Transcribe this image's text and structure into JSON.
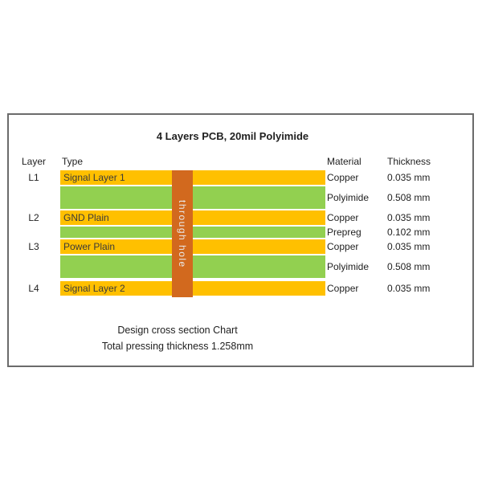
{
  "title": "4 Layers PCB, 20mil Polyimide",
  "columns": {
    "layer": "Layer",
    "type": "Type",
    "material": "Material",
    "thickness": "Thickness"
  },
  "stack": {
    "through_hole_label": "through hole",
    "layers": [
      {
        "layer": "L1",
        "type": "Signal Layer 1",
        "material": "Copper",
        "thickness": "0.035 mm",
        "kind": "copper"
      },
      {
        "layer": "",
        "type": "",
        "material": "Polyimide",
        "thickness": "0.508 mm",
        "kind": "dielectric-core"
      },
      {
        "layer": "L2",
        "type": "GND Plain",
        "material": "Copper",
        "thickness": "0.035 mm",
        "kind": "copper"
      },
      {
        "layer": "",
        "type": "",
        "material": "Prepreg",
        "thickness": "0.102 mm",
        "kind": "dielectric-prepreg"
      },
      {
        "layer": "L3",
        "type": "Power Plain",
        "material": "Copper",
        "thickness": "0.035 mm",
        "kind": "copper"
      },
      {
        "layer": "",
        "type": "",
        "material": "Polyimide",
        "thickness": "0.508 mm",
        "kind": "dielectric-core"
      },
      {
        "layer": "L4",
        "type": "Signal Layer 2",
        "material": "Copper",
        "thickness": "0.035 mm",
        "kind": "copper"
      }
    ]
  },
  "footer": {
    "line1": "Design cross section Chart",
    "line2": "Total pressing thickness 1.258mm"
  },
  "colors": {
    "copper": "#FFC000",
    "dielectric": "#92D050",
    "through_hole": "#D2691E",
    "through_hole_text": "#E8E8E8",
    "frame_border": "#6b6b6b",
    "text": "#1f1f1f"
  }
}
